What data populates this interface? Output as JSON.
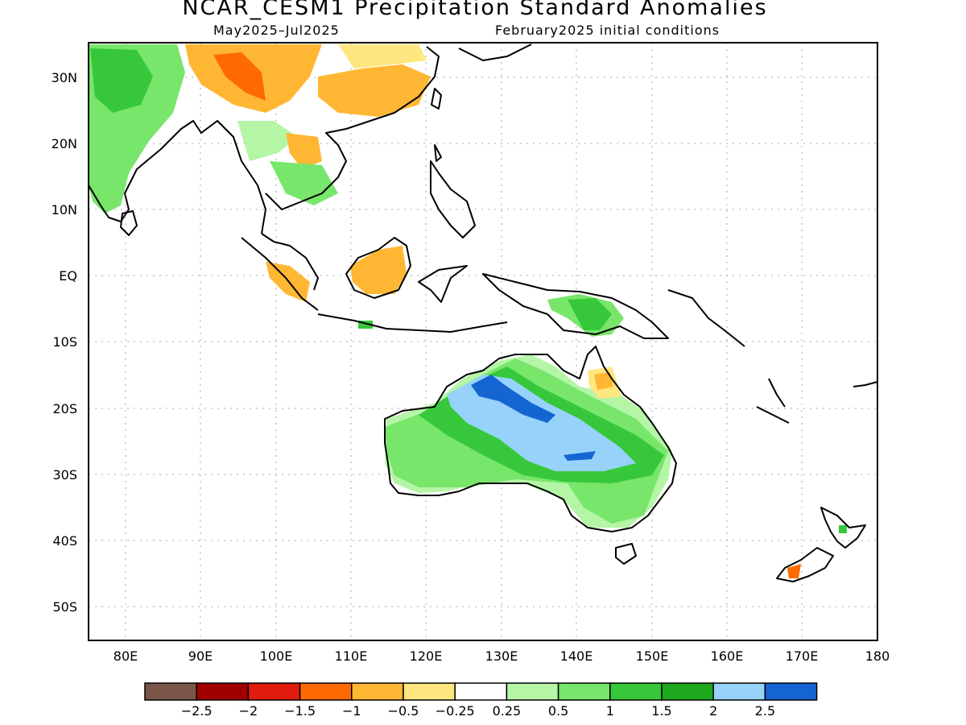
{
  "title": "NCAR_CESM1 Precipitation Standard Anomalies",
  "period": "May2025–Jul2025",
  "init": "February2025 initial conditions",
  "lat_labels": [
    "30N",
    "20N",
    "10N",
    "EQ",
    "10S",
    "20S",
    "30S",
    "40S",
    "50S"
  ],
  "lon_labels": [
    "80E",
    "90E",
    "100E",
    "110E",
    "120E",
    "130E",
    "140E",
    "150E",
    "160E",
    "170E",
    "180"
  ],
  "colorbar": {
    "colors": [
      "#7a5548",
      "#a00000",
      "#e01c0e",
      "#ff6a00",
      "#ffb733",
      "#ffe680",
      "#ffffff",
      "#b4f5a6",
      "#78e56b",
      "#36c83a",
      "#1ea81e",
      "#96d2fa",
      "#1464d2"
    ],
    "labels": [
      "−2.5",
      "−2",
      "−1.5",
      "−1",
      "−0.5",
      "−0.25",
      "0.25",
      "0.5",
      "1",
      "1.5",
      "2",
      "2.5"
    ]
  }
}
